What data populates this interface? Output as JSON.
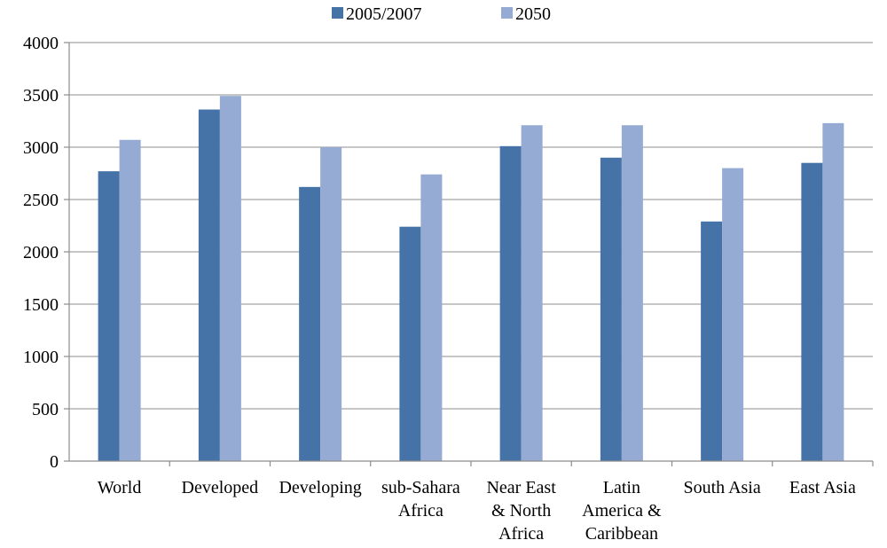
{
  "chart_data": {
    "type": "bar",
    "title": "",
    "xlabel": "",
    "ylabel": "",
    "ylim": [
      0,
      4000
    ],
    "yticks": [
      0,
      500,
      1000,
      1500,
      2000,
      2500,
      3000,
      3500,
      4000
    ],
    "grid": true,
    "legend_position": "top-center",
    "categories": [
      [
        "World"
      ],
      [
        "Developed"
      ],
      [
        "Developing"
      ],
      [
        "sub-Sahara",
        "Africa"
      ],
      [
        "Near East",
        "& North",
        "Africa"
      ],
      [
        "Latin",
        "America &",
        "Caribbean"
      ],
      [
        "South Asia"
      ],
      [
        "East Asia"
      ]
    ],
    "series": [
      {
        "name": "2005/2007",
        "color": "#4572a7",
        "values": [
          2770,
          3360,
          2620,
          2240,
          3010,
          2900,
          2290,
          2850
        ]
      },
      {
        "name": "2050",
        "color": "#95abd3",
        "values": [
          3070,
          3490,
          3000,
          2740,
          3210,
          3210,
          2800,
          3230
        ]
      }
    ]
  }
}
